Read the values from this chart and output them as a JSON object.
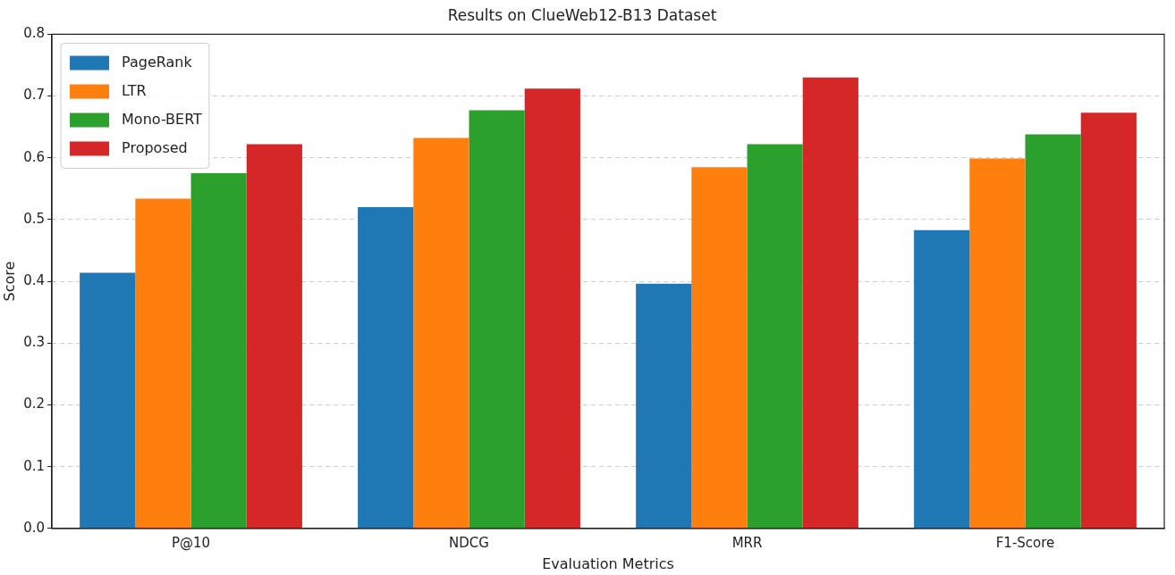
{
  "chart_data": {
    "type": "bar",
    "title": "Results on ClueWeb12-B13 Dataset",
    "xlabel": "Evaluation Metrics",
    "ylabel": "Score",
    "categories": [
      "P@10",
      "NDCG",
      "MRR",
      "F1-Score"
    ],
    "series": [
      {
        "name": "PageRank",
        "color": "#1f77b4",
        "values": [
          0.414,
          0.52,
          0.396,
          0.483
        ]
      },
      {
        "name": "LTR",
        "color": "#ff7f0e",
        "values": [
          0.534,
          0.632,
          0.585,
          0.599
        ]
      },
      {
        "name": "Mono-BERT",
        "color": "#2ca02c",
        "values": [
          0.575,
          0.677,
          0.622,
          0.638
        ]
      },
      {
        "name": "Proposed",
        "color": "#d62728",
        "values": [
          0.622,
          0.712,
          0.73,
          0.673
        ]
      }
    ],
    "ylim": [
      0,
      0.8
    ],
    "yticks": [
      {
        "value": 0,
        "label": "0.0"
      },
      0.1,
      0.2,
      0.3,
      0.4,
      0.5,
      0.6,
      0.7,
      0.8
    ],
    "grid": "y",
    "legend": "top left"
  }
}
